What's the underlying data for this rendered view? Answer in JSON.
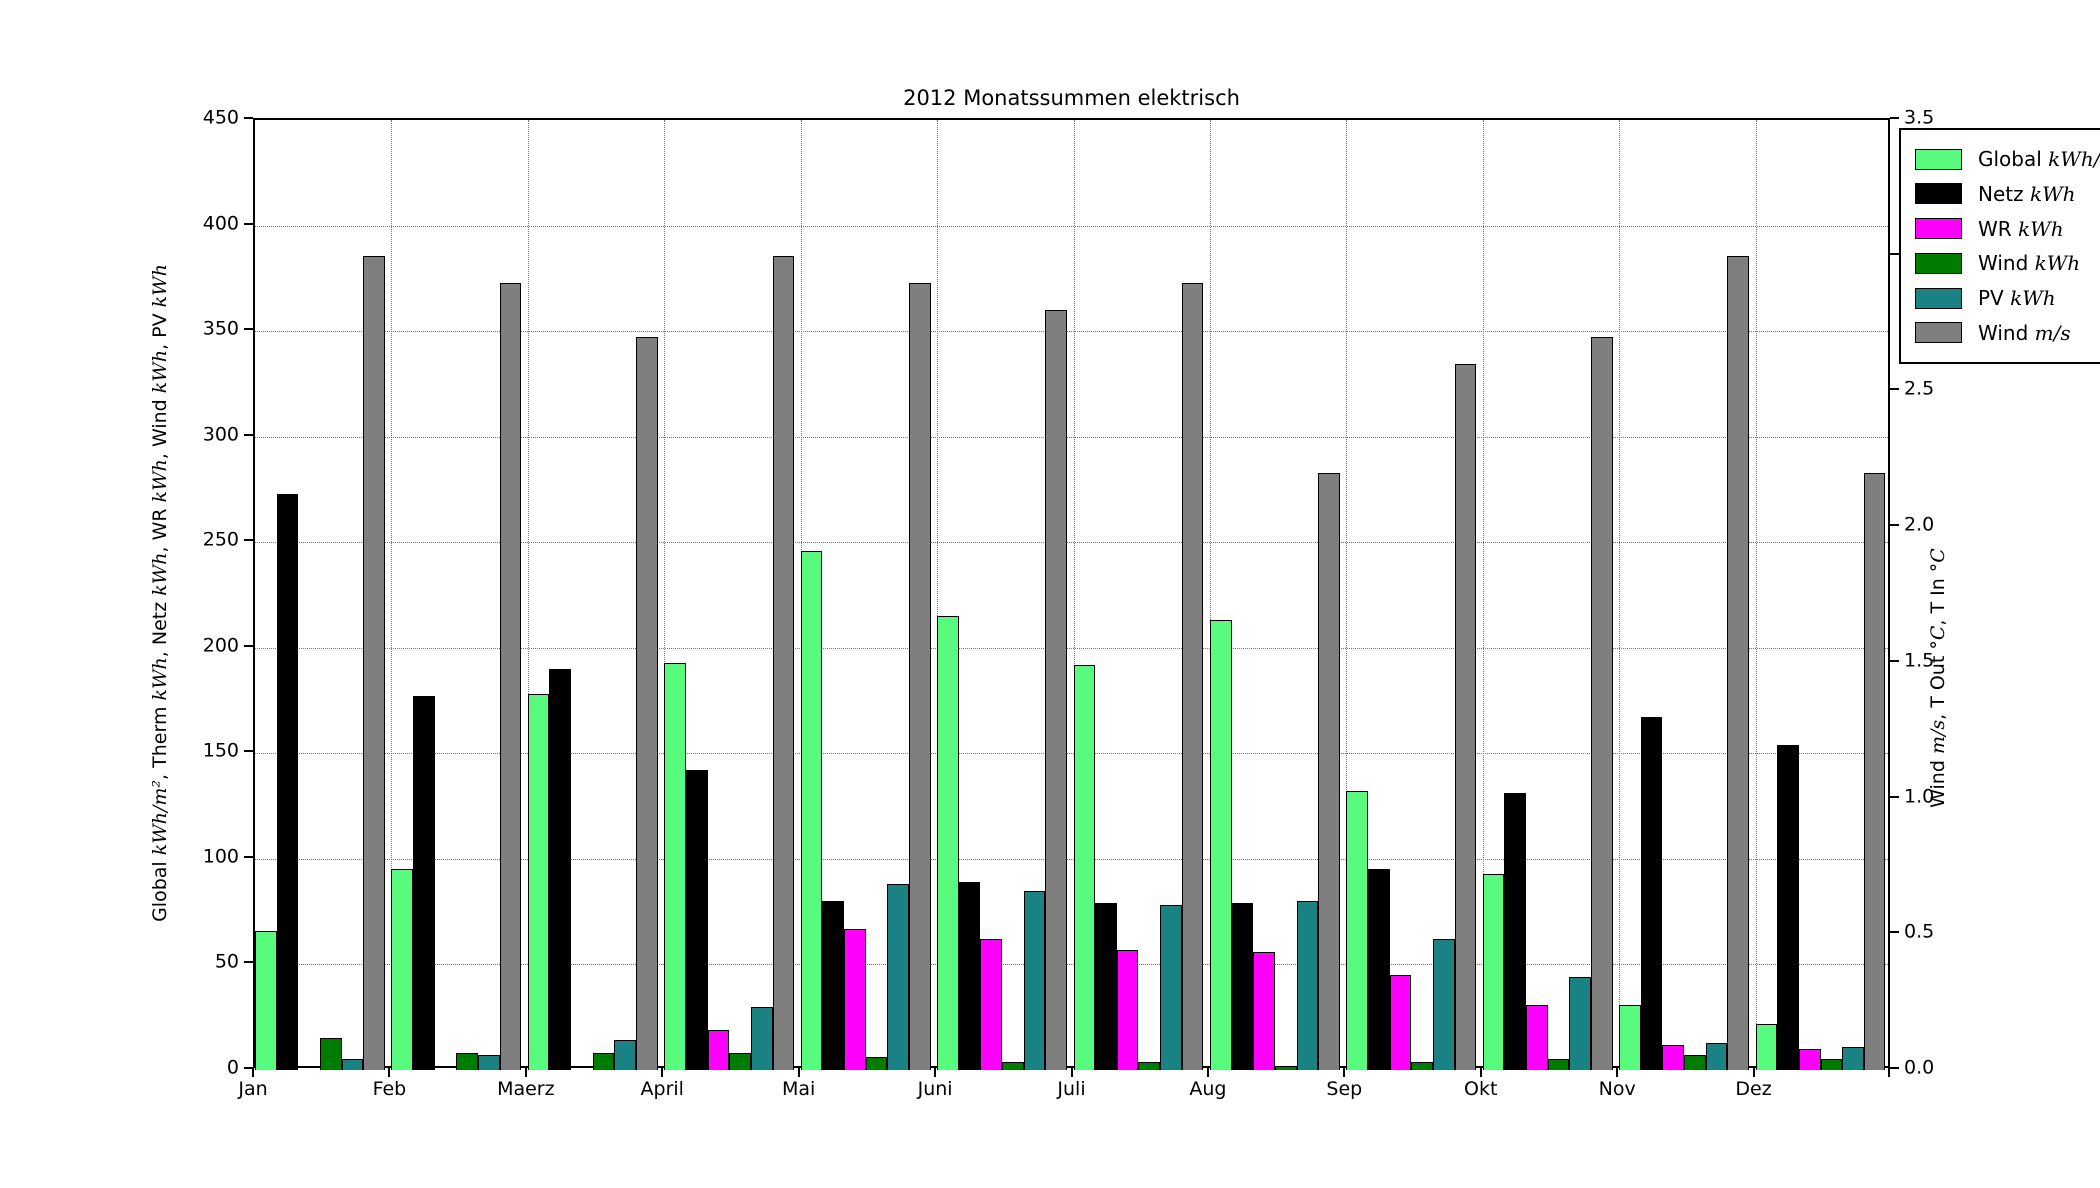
{
  "chart_data": {
    "type": "bar",
    "title": "2012 Monatssummen elektrisch",
    "categories": [
      "Jan",
      "Feb",
      "Maerz",
      "April",
      "Mai",
      "Juni",
      "Juli",
      "Aug",
      "Sep",
      "Okt",
      "Nov",
      "Dez"
    ],
    "series": [
      {
        "name": "Global",
        "unit": "kWh/m²",
        "color": "#58fb7d",
        "axis": "left",
        "values": [
          66,
          95,
          178,
          193,
          246,
          215,
          192,
          213,
          132,
          93,
          31,
          22
        ]
      },
      {
        "name": "Netz",
        "unit": "kWh",
        "color": "#000000",
        "axis": "left",
        "values": [
          273,
          177,
          190,
          142,
          80,
          89,
          79,
          79,
          95,
          131,
          167,
          154
        ]
      },
      {
        "name": "WR",
        "unit": "kWh",
        "color": "#ff00ff",
        "axis": "left",
        "values": [
          0,
          0,
          0,
          19,
          67,
          62,
          57,
          56,
          45,
          31,
          12,
          10
        ]
      },
      {
        "name": "Wind",
        "unit": "kWh",
        "color": "#007d00",
        "axis": "left",
        "values": [
          15,
          8,
          8,
          8,
          6,
          4,
          4,
          2,
          4,
          5,
          7,
          5
        ]
      },
      {
        "name": "PV",
        "unit": "kWh",
        "color": "#1b8284",
        "axis": "left",
        "values": [
          5,
          7,
          14,
          30,
          88,
          85,
          78,
          80,
          62,
          44,
          13,
          11
        ]
      },
      {
        "name": "Wind",
        "unit": "m/s",
        "color": "#7f7f7f",
        "axis": "right",
        "values": [
          3.0,
          2.9,
          2.7,
          3.0,
          2.9,
          2.8,
          2.9,
          2.2,
          2.6,
          2.7,
          3.0,
          2.2
        ]
      }
    ],
    "left_axis": {
      "min": 0,
      "max": 450,
      "ticks": [
        0,
        50,
        100,
        150,
        200,
        250,
        300,
        350,
        400,
        450
      ],
      "label_segments": [
        {
          "t": "Global "
        },
        {
          "t": "kWh/m²",
          "m": 1
        },
        {
          "t": ", Therm "
        },
        {
          "t": "kWh",
          "m": 1
        },
        {
          "t": ", Netz "
        },
        {
          "t": "kWh",
          "m": 1
        },
        {
          "t": ", WR "
        },
        {
          "t": "kWh",
          "m": 1
        },
        {
          "t": ", Wind "
        },
        {
          "t": "kWh",
          "m": 1
        },
        {
          "t": ", PV "
        },
        {
          "t": "kWh",
          "m": 1
        }
      ]
    },
    "right_axis": {
      "min": 0,
      "max": 3.5,
      "ticks": [
        "0.0",
        "0.5",
        "1.0",
        "1.5",
        "2.0",
        "2.5",
        "3.0",
        "3.5"
      ],
      "label_segments": [
        {
          "t": "Wind "
        },
        {
          "t": "m/s",
          "m": 1
        },
        {
          "t": ", T Out "
        },
        {
          "t": "°C",
          "m": 1
        },
        {
          "t": ", T In "
        },
        {
          "t": "°C",
          "m": 1
        }
      ]
    },
    "grid": true,
    "legend_position": "upper-right-outside-clipped"
  },
  "layout_colors": {
    "background": "#ffffff",
    "grid": "#777777",
    "frame": "#000000"
  }
}
